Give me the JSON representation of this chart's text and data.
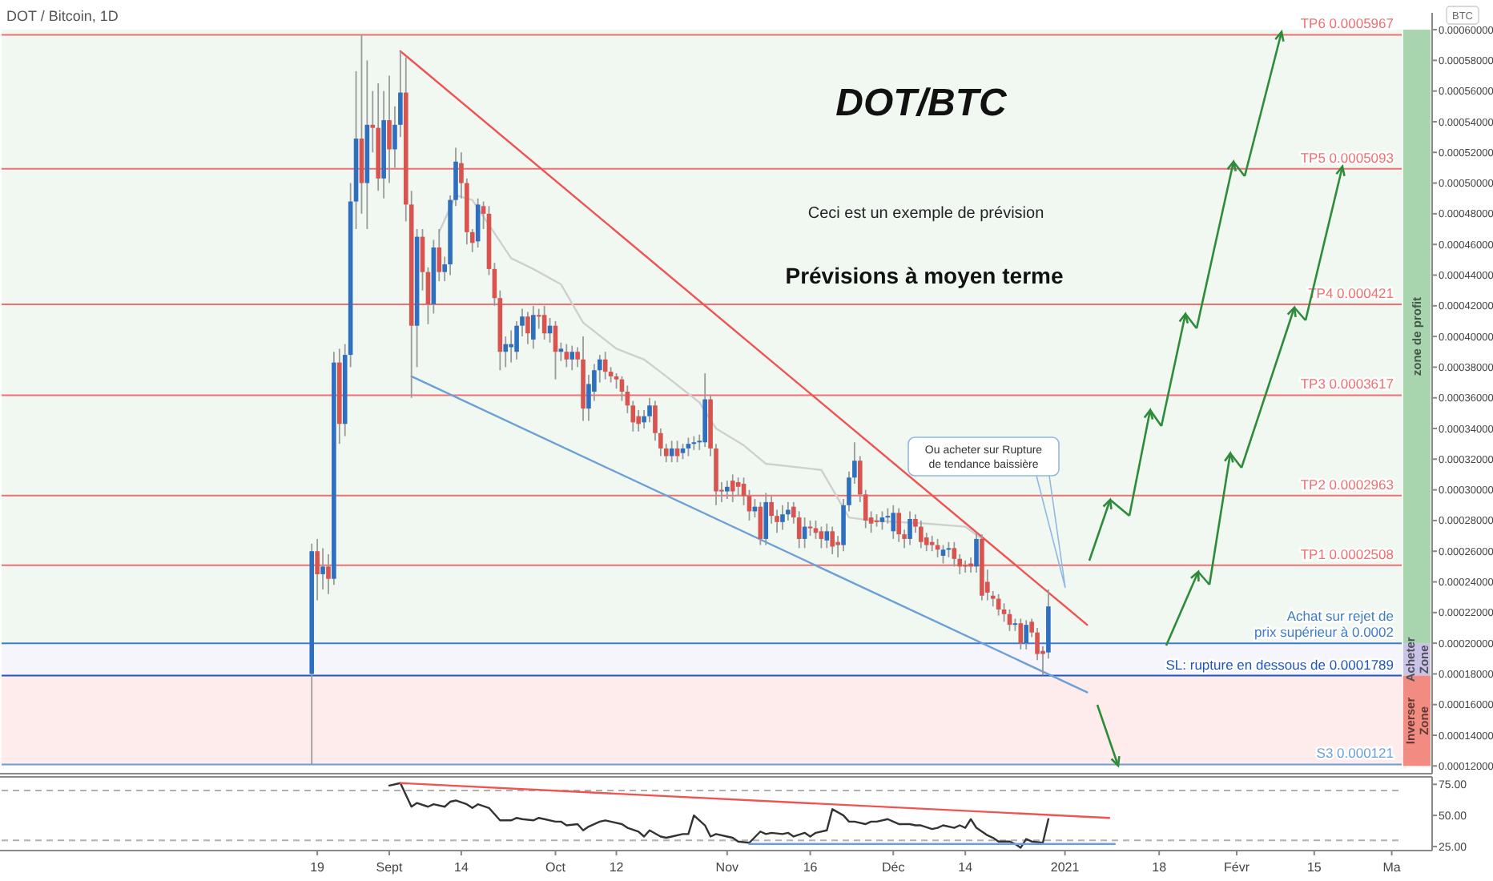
{
  "chart_data": [
    {
      "type": "candlestick",
      "title": "DOT/BTC",
      "annotations": [
        "DOT / Bitcoin, 1D",
        "BTC",
        "Ceci est un exemple de prévision",
        "Prévisions à moyen terme",
        "Ou acheter sur Rupture\nde tendance baissière"
      ],
      "x": [
        "2020-08-18",
        "2020-08-19",
        "2020-08-20",
        "2020-08-21",
        "2020-08-22",
        "2020-08-23",
        "2020-08-24",
        "2020-08-25",
        "2020-08-26",
        "2020-08-27",
        "2020-08-28",
        "2020-08-29",
        "2020-08-30",
        "2020-08-31",
        "2020-09-01",
        "2020-09-02",
        "2020-09-03",
        "2020-09-04",
        "2020-09-05",
        "2020-09-06",
        "2020-09-07",
        "2020-09-08",
        "2020-09-09",
        "2020-09-10",
        "2020-09-11",
        "2020-09-12",
        "2020-09-13",
        "2020-09-14",
        "2020-09-15",
        "2020-09-16",
        "2020-09-17",
        "2020-09-18",
        "2020-09-19",
        "2020-09-20",
        "2020-09-21",
        "2020-09-22",
        "2020-09-23",
        "2020-09-24",
        "2020-09-25",
        "2020-09-26",
        "2020-09-27",
        "2020-09-28",
        "2020-09-29",
        "2020-09-30",
        "2020-10-01",
        "2020-10-02",
        "2020-10-03",
        "2020-10-04",
        "2020-10-05",
        "2020-10-06",
        "2020-10-07",
        "2020-10-08",
        "2020-10-09",
        "2020-10-10",
        "2020-10-11",
        "2020-10-12",
        "2020-10-13",
        "2020-10-14",
        "2020-10-15",
        "2020-10-16",
        "2020-10-17",
        "2020-10-18",
        "2020-10-19",
        "2020-10-20",
        "2020-10-21",
        "2020-10-22",
        "2020-10-23",
        "2020-10-24",
        "2020-10-25",
        "2020-10-26",
        "2020-10-27",
        "2020-10-28",
        "2020-10-29",
        "2020-10-30",
        "2020-10-31",
        "2020-11-01",
        "2020-11-02",
        "2020-11-03",
        "2020-11-04",
        "2020-11-05",
        "2020-11-06",
        "2020-11-07",
        "2020-11-08",
        "2020-11-09",
        "2020-11-10",
        "2020-11-11",
        "2020-11-12",
        "2020-11-13",
        "2020-11-14",
        "2020-11-15",
        "2020-11-16",
        "2020-11-17",
        "2020-11-18",
        "2020-11-19",
        "2020-11-20",
        "2020-11-21",
        "2020-11-22",
        "2020-11-23",
        "2020-11-24",
        "2020-11-25",
        "2020-11-26",
        "2020-11-27",
        "2020-11-28",
        "2020-11-29",
        "2020-11-30",
        "2020-12-01",
        "2020-12-02",
        "2020-12-03",
        "2020-12-04",
        "2020-12-05",
        "2020-12-06",
        "2020-12-07",
        "2020-12-08",
        "2020-12-09",
        "2020-12-10",
        "2020-12-11",
        "2020-12-12",
        "2020-12-13",
        "2020-12-14",
        "2020-12-15",
        "2020-12-16",
        "2020-12-17",
        "2020-12-18",
        "2020-12-19",
        "2020-12-20",
        "2020-12-21",
        "2020-12-22",
        "2020-12-23",
        "2020-12-24",
        "2020-12-25",
        "2020-12-26",
        "2020-12-27",
        "2020-12-28",
        "2020-12-29"
      ],
      "ohlc": [
        [
          0.00018,
          0.000265,
          0.000121,
          0.00026
        ],
        [
          0.00026,
          0.000268,
          0.000228,
          0.000245
        ],
        [
          0.000245,
          0.000262,
          0.000235,
          0.00025
        ],
        [
          0.00025,
          0.000258,
          0.000232,
          0.000242
        ],
        [
          0.000242,
          0.00039,
          0.000238,
          0.000383
        ],
        [
          0.000383,
          0.000392,
          0.00033,
          0.000343
        ],
        [
          0.000343,
          0.000395,
          0.000335,
          0.000388
        ],
        [
          0.000388,
          0.0005,
          0.00038,
          0.000488
        ],
        [
          0.000488,
          0.000573,
          0.00047,
          0.000529
        ],
        [
          0.000529,
          0.000597,
          0.00048,
          0.0005
        ],
        [
          0.0005,
          0.00058,
          0.00047,
          0.000538
        ],
        [
          0.000538,
          0.00056,
          0.00052,
          0.000536
        ],
        [
          0.000536,
          0.000565,
          0.000495,
          0.000503
        ],
        [
          0.000503,
          0.00056,
          0.00049,
          0.000541
        ],
        [
          0.000541,
          0.00057,
          0.0005,
          0.000522
        ],
        [
          0.000522,
          0.00055,
          0.00051,
          0.000538
        ],
        [
          0.000538,
          0.000586,
          0.00053,
          0.000559
        ],
        [
          0.000559,
          0.000582,
          0.000475,
          0.000486
        ],
        [
          0.000486,
          0.000495,
          0.00036,
          0.000407
        ],
        [
          0.000407,
          0.00047,
          0.00038,
          0.000465
        ],
        [
          0.000465,
          0.00047,
          0.00043,
          0.000442
        ],
        [
          0.000442,
          0.000445,
          0.000408,
          0.000421
        ],
        [
          0.000421,
          0.000463,
          0.000415,
          0.000458
        ],
        [
          0.000458,
          0.00047,
          0.000436,
          0.000442
        ],
        [
          0.000442,
          0.000452,
          0.000436,
          0.000447
        ],
        [
          0.000447,
          0.000492,
          0.00044,
          0.000489
        ],
        [
          0.000489,
          0.000523,
          0.000485,
          0.000514
        ],
        [
          0.000513,
          0.00052,
          0.00049,
          0.0005
        ],
        [
          0.0005,
          0.000503,
          0.00046,
          0.000468
        ],
        [
          0.000468,
          0.00047,
          0.000455,
          0.000461
        ],
        [
          0.000462,
          0.00049,
          0.000458,
          0.000486
        ],
        [
          0.000485,
          0.000488,
          0.00047,
          0.00048
        ],
        [
          0.00048,
          0.000485,
          0.00044,
          0.000444
        ],
        [
          0.000444,
          0.000448,
          0.00042,
          0.000425
        ],
        [
          0.000425,
          0.00043,
          0.000378,
          0.00039
        ],
        [
          0.00039,
          0.0004,
          0.00038,
          0.000395
        ],
        [
          0.000393,
          0.000404,
          0.000383,
          0.000395
        ],
        [
          0.00039,
          0.00041,
          0.000385,
          0.000407
        ],
        [
          0.000407,
          0.000418,
          0.0004,
          0.000413
        ],
        [
          0.000413,
          0.000416,
          0.000395,
          0.000402
        ],
        [
          0.000398,
          0.00042,
          0.000392,
          0.000414
        ],
        [
          0.000414,
          0.000418,
          0.000405,
          0.000413
        ],
        [
          0.000414,
          0.00042,
          0.000398,
          0.000402
        ],
        [
          0.000402,
          0.000412,
          0.000396,
          0.000407
        ],
        [
          0.000407,
          0.00041,
          0.000372,
          0.00039
        ],
        [
          0.00039,
          0.000396,
          0.000384,
          0.000392
        ],
        [
          0.00039,
          0.000395,
          0.00038,
          0.000385
        ],
        [
          0.000385,
          0.000394,
          0.000378,
          0.00039
        ],
        [
          0.00039,
          0.000393,
          0.00038,
          0.000385
        ],
        [
          0.000385,
          0.0004,
          0.000345,
          0.000353
        ],
        [
          0.000353,
          0.000375,
          0.000345,
          0.000369
        ],
        [
          0.000364,
          0.000382,
          0.000358,
          0.000378
        ],
        [
          0.000378,
          0.000388,
          0.00037,
          0.000385
        ],
        [
          0.000385,
          0.00039,
          0.000372,
          0.000377
        ],
        [
          0.000377,
          0.00038,
          0.00037,
          0.000374
        ],
        [
          0.000374,
          0.000376,
          0.000366,
          0.000372
        ],
        [
          0.000372,
          0.000374,
          0.000358,
          0.000364
        ],
        [
          0.000364,
          0.000368,
          0.00035,
          0.000355
        ],
        [
          0.000355,
          0.000358,
          0.000338,
          0.000344
        ],
        [
          0.000348,
          0.000352,
          0.000338,
          0.000343
        ],
        [
          0.000344,
          0.000352,
          0.00034,
          0.000348
        ],
        [
          0.000348,
          0.00036,
          0.000344,
          0.000355
        ],
        [
          0.000355,
          0.000358,
          0.000332,
          0.000337
        ],
        [
          0.000337,
          0.00034,
          0.000322,
          0.000327
        ],
        [
          0.000327,
          0.00033,
          0.000318,
          0.000322
        ],
        [
          0.000322,
          0.000332,
          0.000318,
          0.000327
        ],
        [
          0.000327,
          0.000332,
          0.000318,
          0.000322
        ],
        [
          0.000324,
          0.00033,
          0.00032,
          0.000327
        ],
        [
          0.000327,
          0.000334,
          0.000322,
          0.00033
        ],
        [
          0.00033,
          0.000335,
          0.000326,
          0.000331
        ],
        [
          0.000331,
          0.000336,
          0.000326,
          0.000332
        ],
        [
          0.000331,
          0.000376,
          0.000328,
          0.000359
        ],
        [
          0.000359,
          0.000362,
          0.000322,
          0.000327
        ],
        [
          0.000327,
          0.00033,
          0.00029,
          0.000299
        ],
        [
          0.0003,
          0.000305,
          0.000292,
          0.000299
        ],
        [
          0.000299,
          0.000306,
          0.000294,
          0.000302
        ],
        [
          0.000306,
          0.00031,
          0.000292,
          0.000299
        ],
        [
          0.000305,
          0.000308,
          0.000296,
          0.000302
        ],
        [
          0.000304,
          0.000308,
          0.00029,
          0.000296
        ],
        [
          0.000296,
          0.0003,
          0.00028,
          0.000286
        ],
        [
          0.000286,
          0.000294,
          0.000282,
          0.000289
        ],
        [
          0.000289,
          0.000292,
          0.000264,
          0.000268
        ],
        [
          0.000268,
          0.000298,
          0.000264,
          0.000292
        ],
        [
          0.000292,
          0.000296,
          0.000278,
          0.000283
        ],
        [
          0.000283,
          0.000287,
          0.000272,
          0.000279
        ],
        [
          0.000279,
          0.00029,
          0.000274,
          0.000284
        ],
        [
          0.000284,
          0.000292,
          0.00028,
          0.000287
        ],
        [
          0.000289,
          0.000292,
          0.000278,
          0.000282
        ],
        [
          0.000282,
          0.000286,
          0.000262,
          0.000268
        ],
        [
          0.000268,
          0.000282,
          0.000262,
          0.000276
        ],
        [
          0.000276,
          0.00028,
          0.00027,
          0.000275
        ],
        [
          0.000275,
          0.00028,
          0.000268,
          0.000272
        ],
        [
          0.000273,
          0.000276,
          0.000262,
          0.000268
        ],
        [
          0.000267,
          0.000278,
          0.000262,
          0.000273
        ],
        [
          0.000273,
          0.000276,
          0.000258,
          0.000263
        ],
        [
          0.000266,
          0.00027,
          0.000256,
          0.000264
        ],
        [
          0.000264,
          0.000294,
          0.00026,
          0.00029
        ],
        [
          0.00029,
          0.000312,
          0.000286,
          0.000308
        ],
        [
          0.000308,
          0.000331,
          0.000304,
          0.000319
        ],
        [
          0.000319,
          0.000322,
          0.000292,
          0.000297
        ],
        [
          0.000297,
          0.0003,
          0.000275,
          0.00028
        ],
        [
          0.000282,
          0.000286,
          0.000272,
          0.000278
        ],
        [
          0.00028,
          0.000284,
          0.000276,
          0.000279
        ],
        [
          0.000279,
          0.000286,
          0.000274,
          0.000282
        ],
        [
          0.000282,
          0.000288,
          0.000278,
          0.000283
        ],
        [
          0.000273,
          0.00029,
          0.000268,
          0.000285
        ],
        [
          0.000285,
          0.000288,
          0.000266,
          0.000271
        ],
        [
          0.000271,
          0.000274,
          0.000262,
          0.000268
        ],
        [
          0.000268,
          0.000286,
          0.000264,
          0.000281
        ],
        [
          0.000281,
          0.000284,
          0.000272,
          0.000276
        ],
        [
          0.000276,
          0.00028,
          0.000262,
          0.000266
        ],
        [
          0.000269,
          0.000272,
          0.00026,
          0.000264
        ],
        [
          0.000266,
          0.00027,
          0.00026,
          0.000264
        ],
        [
          0.000264,
          0.000268,
          0.000256,
          0.000261
        ],
        [
          0.000257,
          0.000264,
          0.000252,
          0.000261
        ],
        [
          0.000261,
          0.000266,
          0.000256,
          0.000262
        ],
        [
          0.000262,
          0.000266,
          0.00025,
          0.000255
        ],
        [
          0.000255,
          0.000258,
          0.000245,
          0.00025
        ],
        [
          0.000251,
          0.000254,
          0.000246,
          0.00025
        ],
        [
          0.000252,
          0.000256,
          0.000246,
          0.00025
        ],
        [
          0.00025,
          0.000272,
          0.000246,
          0.000268
        ],
        [
          0.000268,
          0.000271,
          0.000228,
          0.000231
        ],
        [
          0.00024,
          0.000248,
          0.000228,
          0.000233
        ],
        [
          0.000231,
          0.000234,
          0.000224,
          0.000229
        ],
        [
          0.000229,
          0.000232,
          0.000218,
          0.000222
        ],
        [
          0.000222,
          0.000226,
          0.000214,
          0.000219
        ],
        [
          0.000219,
          0.000222,
          0.000208,
          0.000212
        ],
        [
          0.000212,
          0.000216,
          0.000208,
          0.000213
        ],
        [
          0.000213,
          0.000216,
          0.000196,
          0.0002
        ],
        [
          0.0002,
          0.000215,
          0.000196,
          0.000212
        ],
        [
          0.000214,
          0.000216,
          0.000204,
          0.000207
        ],
        [
          0.000207,
          0.00021,
          0.000189,
          0.000193
        ],
        [
          0.000195,
          0.000198,
          0.000179,
          0.000193
        ],
        [
          0.000194,
          0.000235,
          0.00019,
          0.000224
        ]
      ],
      "series": [
        {
          "type": "line",
          "color": "#cfcfcf",
          "x": [
            "2020-09-10",
            "2020-09-13",
            "2020-09-16",
            "2020-09-23",
            "2020-09-27",
            "2020-10-02",
            "2020-10-06",
            "2020-10-12",
            "2020-10-17",
            "2020-10-21",
            "2020-10-27",
            "2020-10-30",
            "2020-11-04",
            "2020-11-08",
            "2020-11-18",
            "2020-11-23",
            "2020-11-27",
            "2020-12-07",
            "2020-12-14",
            "2020-12-17"
          ],
          "values": [
            0.000468,
            0.000492,
            0.000489,
            0.000451,
            0.000444,
            0.000434,
            0.000409,
            0.000392,
            0.000385,
            0.000374,
            0.000357,
            0.00034,
            0.000329,
            0.000317,
            0.000313,
            0.000282,
            0.00028,
            0.000278,
            0.000276,
            0.000268
          ]
        },
        {
          "type": "line",
          "color": "#f05350",
          "x": [
            "2020-09-03",
            "2021-01-05"
          ],
          "values": [
            0.000586,
            0.000212
          ]
        },
        {
          "type": "line",
          "color": "#6a9fd8",
          "x": [
            "2020-09-05",
            "2021-01-05"
          ],
          "values": [
            0.000374,
            0.000168
          ]
        }
      ],
      "ref_lines": [
        {
          "axis": "y",
          "value": 0.0005967,
          "label": "TP6 0.0005967",
          "color": "#ef7070"
        },
        {
          "axis": "y",
          "value": 0.0005093,
          "label": "TP5 0.0005093",
          "color": "#ef7070"
        },
        {
          "axis": "y",
          "value": 0.000421,
          "label": "TP4 0.000421",
          "color": "#ef7070"
        },
        {
          "axis": "y",
          "value": 0.0003617,
          "label": "TP3 0.0003617",
          "color": "#ef7070"
        },
        {
          "axis": "y",
          "value": 0.0002963,
          "label": "TP2 0.0002963",
          "color": "#ef7070"
        },
        {
          "axis": "y",
          "value": 0.0002508,
          "label": "TP1 0.0002508",
          "color": "#ef7070"
        },
        {
          "axis": "y",
          "value": 0.0002,
          "label": "Achat sur rejet de\nprix supérieur à 0.0002",
          "color": "#3d7cc9"
        },
        {
          "axis": "y",
          "value": 0.0001789,
          "label": "SL: rupture en dessous de 0.0001789",
          "color": "#1f55c0"
        },
        {
          "axis": "y",
          "value": 0.000121,
          "label": "S3 0.000121",
          "color": "#6a9fd8"
        }
      ],
      "bands": [
        {
          "axis": "y",
          "from": 0.0002,
          "to": 0.0006,
          "label": "zone de profit",
          "color": "#a8d5ae"
        },
        {
          "axis": "y",
          "from": 0.0001789,
          "to": 0.0002,
          "label": "Acheter Zone",
          "color": "#c9c3e6"
        },
        {
          "axis": "y",
          "from": 0.00012,
          "to": 0.0001789,
          "label": "Inverser Zone",
          "color": "#f28b82"
        }
      ],
      "xlim": [
        "2020-06-23",
        "2021-03-08"
      ],
      "ylim": [
        0.000116,
        0.000611
      ],
      "yticks": [
        {
          "value": 0.00012,
          "label": "0.00012000"
        },
        {
          "value": 0.00014,
          "label": "0.00014000"
        },
        {
          "value": 0.00016,
          "label": "0.00016000"
        },
        {
          "value": 0.00018,
          "label": "0.00018000"
        },
        {
          "value": 0.0002,
          "label": "0.00020000"
        },
        {
          "value": 0.00022,
          "label": "0.00022000"
        },
        {
          "value": 0.00024,
          "label": "0.00024000"
        },
        {
          "value": 0.00026,
          "label": "0.00026000"
        },
        {
          "value": 0.00028,
          "label": "0.00028000"
        },
        {
          "value": 0.0003,
          "label": "0.00030000"
        },
        {
          "value": 0.00032,
          "label": "0.00032000"
        },
        {
          "value": 0.00034,
          "label": "0.00034000"
        },
        {
          "value": 0.00036,
          "label": "0.00036000"
        },
        {
          "value": 0.00038,
          "label": "0.00038000"
        },
        {
          "value": 0.0004,
          "label": "0.00040000"
        },
        {
          "value": 0.00042,
          "label": "0.00042000"
        },
        {
          "value": 0.00044,
          "label": "0.00044000"
        },
        {
          "value": 0.00046,
          "label": "0.00046000"
        },
        {
          "value": 0.00048,
          "label": "0.00048000"
        },
        {
          "value": 0.0005,
          "label": "0.00050000"
        },
        {
          "value": 0.00052,
          "label": "0.00052000"
        },
        {
          "value": 0.00054,
          "label": "0.00054000"
        },
        {
          "value": 0.00056,
          "label": "0.00056000"
        },
        {
          "value": 0.00058,
          "label": "0.00058000"
        },
        {
          "value": 0.0006,
          "label": "0.00060000"
        }
      ],
      "tick_labels": "y"
    },
    {
      "type": "line",
      "series": [
        {
          "color": "#333333",
          "x": [
            "2020-09-01",
            "2020-09-03",
            "2020-09-05",
            "2020-09-06",
            "2020-09-08",
            "2020-09-09",
            "2020-09-11",
            "2020-09-12",
            "2020-09-13",
            "2020-09-15",
            "2020-09-16",
            "2020-09-17",
            "2020-09-19",
            "2020-09-20",
            "2020-09-21",
            "2020-09-23",
            "2020-09-24",
            "2020-09-25",
            "2020-09-27",
            "2020-09-28",
            "2020-09-29",
            "2020-10-01",
            "2020-10-02",
            "2020-10-03",
            "2020-10-05",
            "2020-10-06",
            "2020-10-07",
            "2020-10-09",
            "2020-10-10",
            "2020-10-11",
            "2020-10-13",
            "2020-10-14",
            "2020-10-16",
            "2020-10-17",
            "2020-10-18",
            "2020-10-20",
            "2020-10-21",
            "2020-10-22",
            "2020-10-24",
            "2020-10-25",
            "2020-10-26",
            "2020-10-28",
            "2020-10-29",
            "2020-10-30",
            "2020-11-01",
            "2020-11-02",
            "2020-11-03",
            "2020-11-05",
            "2020-11-07",
            "2020-11-08",
            "2020-11-09",
            "2020-11-11",
            "2020-11-12",
            "2020-11-13",
            "2020-11-15",
            "2020-11-16",
            "2020-11-17",
            "2020-11-19",
            "2020-11-20",
            "2020-11-22",
            "2020-11-23",
            "2020-11-24",
            "2020-11-26",
            "2020-11-27",
            "2020-11-28",
            "2020-11-30",
            "2020-12-01",
            "2020-12-02",
            "2020-12-04",
            "2020-12-05",
            "2020-12-06",
            "2020-12-08",
            "2020-12-09",
            "2020-12-10",
            "2020-12-12",
            "2020-12-13",
            "2020-12-14",
            "2020-12-15",
            "2020-12-16",
            "2020-12-18",
            "2020-12-19",
            "2020-12-20",
            "2020-12-22",
            "2020-12-23",
            "2020-12-24",
            "2020-12-25",
            "2020-12-26",
            "2020-12-28",
            "2020-12-29"
          ],
          "values": [
            74,
            76,
            57,
            60,
            57,
            59,
            57,
            61,
            62,
            59,
            56,
            59,
            56,
            51,
            46,
            46,
            48,
            47,
            46,
            48,
            47,
            45,
            45,
            42,
            43,
            38,
            41,
            45,
            46,
            45,
            43,
            40,
            37,
            33,
            38,
            33,
            32,
            33,
            35,
            35,
            50,
            42,
            33,
            35,
            33,
            32,
            29,
            28,
            37,
            35,
            36,
            35,
            36,
            33,
            36,
            33,
            36,
            38,
            55,
            50,
            45,
            45,
            43,
            45,
            45,
            47,
            45,
            43,
            43,
            42,
            42,
            39,
            40,
            42,
            40,
            42,
            40,
            47,
            40,
            34,
            32,
            29,
            29,
            27,
            24,
            31,
            29,
            28,
            47
          ]
        },
        {
          "color": "#f05350",
          "x": [
            "2020-09-03",
            "2021-01-09"
          ],
          "values": [
            76,
            48
          ]
        },
        {
          "color": "#6a9fd8",
          "x": [
            "2020-11-05",
            "2021-01-10"
          ],
          "values": [
            27,
            27
          ]
        }
      ],
      "ref_lines": [
        {
          "axis": "y",
          "value": 70,
          "color": "#b0b0b0",
          "line_style": "dashed"
        },
        {
          "axis": "y",
          "value": 30,
          "color": "#b0b0b0",
          "line_style": "dashed"
        }
      ],
      "xlim": [
        "2020-06-23",
        "2021-03-08"
      ],
      "xticks": [
        {
          "value": "2020-08-19",
          "label": "19"
        },
        {
          "value": "2020-09-01",
          "label": "Sept"
        },
        {
          "value": "2020-09-14",
          "label": "14"
        },
        {
          "value": "2020-10-01",
          "label": "Oct"
        },
        {
          "value": "2020-10-12",
          "label": "12"
        },
        {
          "value": "2020-11-01",
          "label": "Nov"
        },
        {
          "value": "2020-11-16",
          "label": "16"
        },
        {
          "value": "2020-12-01",
          "label": "Déc"
        },
        {
          "value": "2020-12-14",
          "label": "14"
        },
        {
          "value": "2021-01-01",
          "label": "2021"
        },
        {
          "value": "2021-01-18",
          "label": "18"
        },
        {
          "value": "2021-02-01",
          "label": "Févr"
        },
        {
          "value": "2021-02-15",
          "label": "15"
        },
        {
          "value": "2021-03-01",
          "label": "Ma"
        }
      ],
      "ylim": [
        23,
        81
      ],
      "yticks": [
        {
          "value": 25,
          "label": "25.00"
        },
        {
          "value": 50,
          "label": "50.00"
        },
        {
          "value": 75,
          "label": "75.00"
        }
      ]
    }
  ]
}
